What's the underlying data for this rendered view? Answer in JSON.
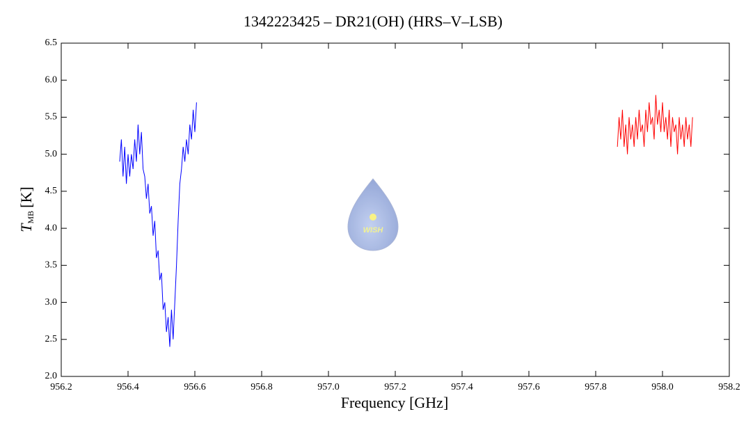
{
  "chart_data": {
    "type": "line",
    "title": "1342223425 – DR21(OH) (HRS–V–LSB)",
    "xlabel": "Frequency [GHz]",
    "ylabel": {
      "main": "T",
      "sub": "MB",
      "unit": "[K]"
    },
    "logo_text": "WISH",
    "xlim": [
      956.2,
      958.2
    ],
    "ylim": [
      2.0,
      6.5
    ],
    "xticks": [
      956.2,
      956.4,
      956.6,
      956.8,
      {
        "value": 957.0,
        "label": "957.0"
      },
      957.2,
      957.4,
      957.6,
      957.8,
      {
        "value": 958.0,
        "label": "958.0"
      },
      958.2
    ],
    "yticks": [
      {
        "value": 2.0,
        "label": "2.0"
      },
      2.5,
      {
        "value": 3.0,
        "label": "3.0"
      },
      3.5,
      {
        "value": 4.0,
        "label": "4.0"
      },
      4.5,
      {
        "value": 5.0,
        "label": "5.0"
      },
      5.5,
      {
        "value": 6.0,
        "label": "6.0"
      },
      6.5
    ],
    "series": [
      {
        "color": "#0000ff",
        "x": [
          956.375,
          956.38,
          956.385,
          956.39,
          956.395,
          956.4,
          956.405,
          956.41,
          956.415,
          956.42,
          956.425,
          956.43,
          956.435,
          956.44,
          956.445,
          956.45,
          956.455,
          956.46,
          956.465,
          956.47,
          956.475,
          956.48,
          956.485,
          956.49,
          956.495,
          956.5,
          956.505,
          956.51,
          956.515,
          956.52,
          956.525,
          956.53,
          956.535,
          956.54,
          956.545,
          956.55,
          956.555,
          956.56,
          956.565,
          956.57,
          956.575,
          956.58,
          956.585,
          956.59,
          956.595,
          956.6,
          956.605
        ],
        "values": [
          4.9,
          5.2,
          4.7,
          5.1,
          4.6,
          5.0,
          4.7,
          5.0,
          4.8,
          5.2,
          4.9,
          5.4,
          5.0,
          5.3,
          4.8,
          4.7,
          4.4,
          4.6,
          4.2,
          4.3,
          3.9,
          4.1,
          3.6,
          3.7,
          3.3,
          3.4,
          2.9,
          3.0,
          2.6,
          2.8,
          2.4,
          2.9,
          2.5,
          3.0,
          3.5,
          4.1,
          4.6,
          4.8,
          5.1,
          4.9,
          5.2,
          5.0,
          5.4,
          5.2,
          5.6,
          5.3,
          5.7
        ]
      },
      {
        "color": "#ff0000",
        "x": [
          957.865,
          957.87,
          957.875,
          957.88,
          957.885,
          957.89,
          957.895,
          957.9,
          957.905,
          957.91,
          957.915,
          957.92,
          957.925,
          957.93,
          957.935,
          957.94,
          957.945,
          957.95,
          957.955,
          957.96,
          957.965,
          957.97,
          957.975,
          957.98,
          957.985,
          957.99,
          957.995,
          958.0,
          958.005,
          958.01,
          958.015,
          958.02,
          958.025,
          958.03,
          958.035,
          958.04,
          958.045,
          958.05,
          958.055,
          958.06,
          958.065,
          958.07,
          958.075,
          958.08,
          958.085,
          958.09
        ],
        "values": [
          5.1,
          5.5,
          5.2,
          5.6,
          5.1,
          5.4,
          5.0,
          5.5,
          5.2,
          5.4,
          5.1,
          5.5,
          5.2,
          5.6,
          5.3,
          5.4,
          5.1,
          5.6,
          5.3,
          5.7,
          5.4,
          5.5,
          5.2,
          5.8,
          5.4,
          5.6,
          5.3,
          5.7,
          5.3,
          5.5,
          5.2,
          5.6,
          5.1,
          5.5,
          5.3,
          5.4,
          5.0,
          5.5,
          5.2,
          5.4,
          5.1,
          5.5,
          5.2,
          5.4,
          5.1,
          5.5
        ]
      }
    ]
  }
}
